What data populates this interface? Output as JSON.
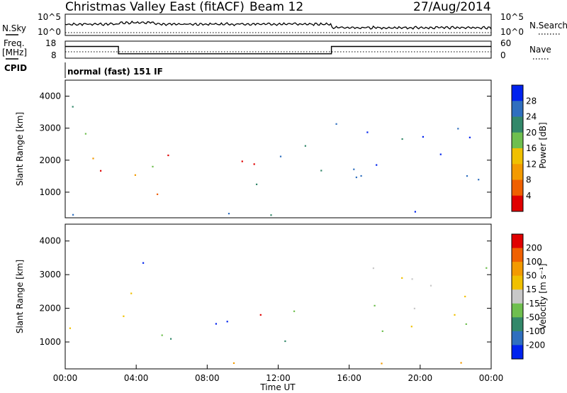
{
  "header": {
    "title": "Christmas Valley East (fitACF)",
    "beam": "Beam 12",
    "date": "27/Aug/2014"
  },
  "side_labels": {
    "nsky": "N.Sky",
    "freq_line1": "Freq.",
    "freq_line2": "[MHz]",
    "cpid": "CPID",
    "nsearch": "N.Search",
    "nave": "Nave"
  },
  "cpid_text": "normal (fast) 151 IF",
  "colors": {
    "power": [
      "#0022ee",
      "#2f6fbf",
      "#33886a",
      "#6fbf4f",
      "#f0c000",
      "#f39a00",
      "#f06000",
      "#e00000"
    ],
    "velocity": [
      "#0022ee",
      "#2f6fbf",
      "#33886a",
      "#6fbf4f",
      "#c8c8c8",
      "#f0c000",
      "#f39a00",
      "#f06000",
      "#e00000"
    ]
  },
  "chart_data": [
    {
      "type": "line",
      "name": "noise",
      "left_ticks": [
        "10^5",
        "10^0"
      ],
      "right_ticks": [
        "10^5",
        "10^0"
      ]
    },
    {
      "type": "line",
      "name": "frequency",
      "left_ticks": [
        "18",
        "8"
      ],
      "right_ticks": [
        "60",
        "0"
      ],
      "freq_segments": [
        {
          "x0": 0,
          "x1": 3.0,
          "freq": 16.5
        },
        {
          "x0": 3.0,
          "x1": 15.0,
          "freq": 10.5
        },
        {
          "x0": 15.0,
          "x1": 24.0,
          "freq": 16.5
        }
      ]
    },
    {
      "type": "heatmap",
      "name": "power",
      "ylabel": "Slant Range [km]",
      "y_ticks": [
        "4000",
        "3000",
        "2000",
        "1000"
      ],
      "ylim": [
        200,
        4500
      ],
      "colorbar_label": "Power [dB]",
      "colorbar_ticks": [
        "28",
        "24",
        "20",
        "16",
        "12",
        "8",
        "4"
      ],
      "scatter_regions": [
        {
          "t0": 0.0,
          "t1": 2.9,
          "r0": 1500,
          "r1": 1900,
          "c": 7
        },
        {
          "t0": 0.0,
          "t1": 2.9,
          "r0": 1900,
          "r1": 2250,
          "c": 5
        },
        {
          "t0": 0.0,
          "t1": 2.9,
          "r0": 2250,
          "r1": 2400,
          "c": 1
        },
        {
          "t0": 3.0,
          "t1": 6.0,
          "r0": 800,
          "r1": 1350,
          "c": 7
        },
        {
          "t0": 3.8,
          "t1": 6.0,
          "r0": 1300,
          "r1": 2900,
          "c": 4
        },
        {
          "t0": 5.6,
          "t1": 7.2,
          "r0": 900,
          "r1": 2200,
          "c": 7
        },
        {
          "t0": 7.0,
          "t1": 12.0,
          "r0": 1400,
          "r1": 2000,
          "c": 6
        },
        {
          "t0": 7.5,
          "t1": 12.5,
          "r0": 1000,
          "r1": 1400,
          "c": 3
        },
        {
          "t0": 12.0,
          "t1": 15.0,
          "r0": 1200,
          "r1": 2600,
          "c": 2
        },
        {
          "t0": 0.0,
          "t1": 2.5,
          "r0": 2800,
          "r1": 3700,
          "c": 2
        },
        {
          "t0": 15.0,
          "t1": 24.0,
          "r0": 1300,
          "r1": 3500,
          "c": 1
        },
        {
          "t0": 0.0,
          "t1": 24.0,
          "r0": 250,
          "r1": 500,
          "c": 1
        }
      ]
    },
    {
      "type": "heatmap",
      "name": "velocity",
      "ylabel": "Slant Range [km]",
      "y_ticks": [
        "4000",
        "3000",
        "2000",
        "1000"
      ],
      "ylim": [
        200,
        4500
      ],
      "colorbar_label": "Velocity [m s⁻¹]",
      "colorbar_ticks": [
        "200",
        "100",
        "50",
        "15",
        "-15",
        "-50",
        "-100",
        "-200"
      ],
      "xlabel": "Time UT",
      "x_ticks": [
        "00:00",
        "04:00",
        "08:00",
        "12:00",
        "16:00",
        "20:00",
        "00:00"
      ],
      "scatter_regions": [
        {
          "t0": 0.0,
          "t1": 3.0,
          "r0": 1400,
          "r1": 2100,
          "c": 4
        },
        {
          "t0": 3.0,
          "t1": 6.0,
          "r0": 900,
          "r1": 2600,
          "c": 4
        },
        {
          "t0": 4.0,
          "t1": 5.0,
          "r0": 2600,
          "r1": 3400,
          "c": 0
        },
        {
          "t0": 5.7,
          "t1": 8.0,
          "r0": 900,
          "r1": 1500,
          "c": 2
        },
        {
          "t0": 6.5,
          "t1": 10.5,
          "r0": 1200,
          "r1": 2000,
          "c": 0
        },
        {
          "t0": 9.0,
          "t1": 12.5,
          "r0": 1300,
          "r1": 1900,
          "c": 7
        },
        {
          "t0": 8.0,
          "t1": 13.0,
          "r0": 900,
          "r1": 1300,
          "c": 2
        },
        {
          "t0": 12.5,
          "t1": 15.0,
          "r0": 1500,
          "r1": 2300,
          "c": 3
        },
        {
          "t0": 14.0,
          "t1": 15.0,
          "r0": 1500,
          "r1": 2000,
          "c": 4
        },
        {
          "t0": 15.5,
          "t1": 24.0,
          "r0": 1200,
          "r1": 3300,
          "c": 4
        },
        {
          "t0": 0.0,
          "t1": 24.0,
          "r0": 250,
          "r1": 450,
          "c": 6
        }
      ]
    }
  ]
}
